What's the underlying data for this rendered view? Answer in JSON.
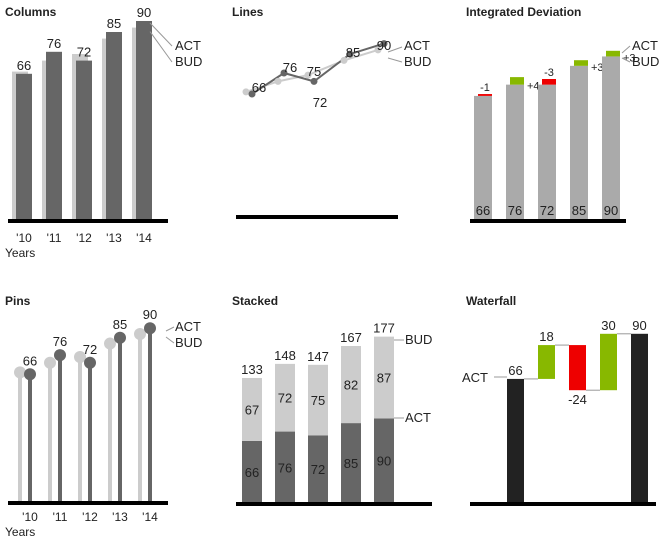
{
  "chart_data": [
    {
      "type": "bar",
      "title": "Columns",
      "categories": [
        "'10",
        "'11",
        "'12",
        "'13",
        "'14"
      ],
      "xlabel": "Years",
      "series": [
        {
          "name": "BUD",
          "values": [
            67,
            72,
            75,
            82,
            87
          ],
          "color": "#cccccc"
        },
        {
          "name": "ACT",
          "values": [
            66,
            76,
            72,
            85,
            90
          ],
          "color": "#666666"
        }
      ],
      "data_labels": [
        "66",
        "76",
        "72",
        "85",
        "90"
      ],
      "legend": [
        "ACT",
        "BUD"
      ]
    },
    {
      "type": "line",
      "title": "Lines",
      "categories": [
        "'10",
        "'11",
        "'12",
        "'13",
        "'14"
      ],
      "series": [
        {
          "name": "BUD",
          "values": [
            67,
            72,
            75,
            82,
            87
          ],
          "color": "#cccccc"
        },
        {
          "name": "ACT",
          "values": [
            66,
            76,
            72,
            85,
            90
          ],
          "color": "#666666"
        }
      ],
      "data_labels": [
        "66",
        "76",
        "75",
        "72",
        "85",
        "90"
      ],
      "legend": [
        "ACT",
        "BUD"
      ]
    },
    {
      "type": "bar",
      "title": "Integrated Deviation",
      "categories": [
        "'10",
        "'11",
        "'12",
        "'13",
        "'14"
      ],
      "series": [
        {
          "name": "BUD",
          "values": [
            67,
            72,
            75,
            82,
            87
          ],
          "color": "#aaaaaa"
        },
        {
          "name": "ACT",
          "values": [
            66,
            76,
            72,
            85,
            90
          ],
          "color": "#aaaaaa"
        }
      ],
      "deviations": [
        "-1",
        "+4",
        "-3",
        "+3",
        "+3"
      ],
      "data_labels": [
        "66",
        "76",
        "72",
        "85",
        "90"
      ],
      "positive_color": "#88b800",
      "negative_color": "#ee0000",
      "legend": [
        "ACT",
        "BUD"
      ]
    },
    {
      "type": "scatter",
      "title": "Pins",
      "categories": [
        "'10",
        "'11",
        "'12",
        "'13",
        "'14"
      ],
      "xlabel": "Years",
      "series": [
        {
          "name": "BUD",
          "values": [
            67,
            72,
            75,
            82,
            87
          ],
          "color": "#cccccc"
        },
        {
          "name": "ACT",
          "values": [
            66,
            76,
            72,
            85,
            90
          ],
          "color": "#666666"
        }
      ],
      "data_labels": [
        "66",
        "76",
        "72",
        "85",
        "90"
      ],
      "legend": [
        "ACT",
        "BUD"
      ]
    },
    {
      "type": "bar",
      "title": "Stacked",
      "categories": [
        "'10",
        "'11",
        "'12",
        "'13",
        "'14"
      ],
      "series": [
        {
          "name": "ACT",
          "values": [
            66,
            76,
            72,
            85,
            90
          ],
          "color": "#666666"
        },
        {
          "name": "BUD",
          "values": [
            67,
            72,
            75,
            82,
            87
          ],
          "color": "#cccccc"
        }
      ],
      "totals": [
        "133",
        "148",
        "147",
        "167",
        "177"
      ],
      "act_labels": [
        "66",
        "76",
        "72",
        "85",
        "90"
      ],
      "bud_labels": [
        "67",
        "72",
        "75",
        "82",
        "87"
      ],
      "legend": [
        "BUD",
        "ACT"
      ]
    },
    {
      "type": "bar",
      "title": "Waterfall",
      "steps": [
        {
          "label": "66",
          "start": 0,
          "end": 66,
          "color": "#222222"
        },
        {
          "label": "18",
          "start": 66,
          "end": 84,
          "color": "#88b800"
        },
        {
          "label": "-24",
          "start": 84,
          "end": 60,
          "color": "#ee0000"
        },
        {
          "label": "30",
          "start": 60,
          "end": 90,
          "color": "#88b800"
        },
        {
          "label": "90",
          "start": 0,
          "end": 90,
          "color": "#222222"
        }
      ],
      "start_label": "ACT"
    }
  ]
}
